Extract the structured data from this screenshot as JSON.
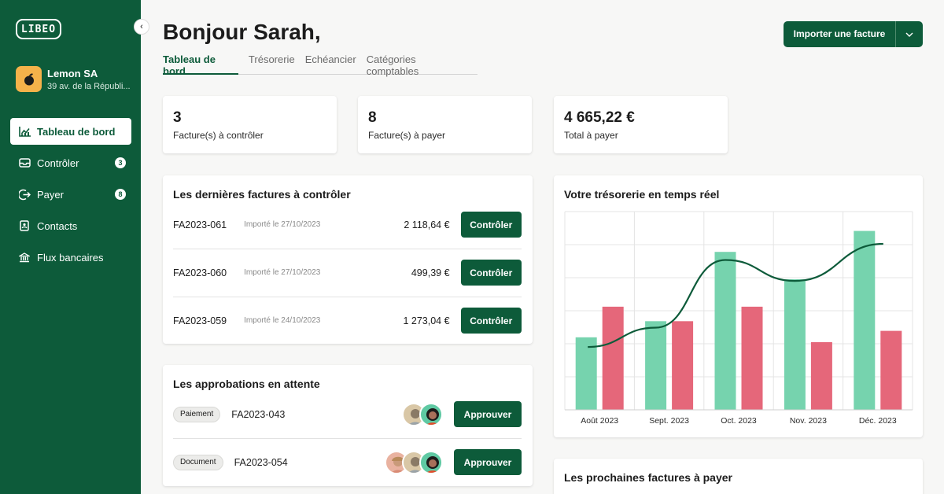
{
  "app": {
    "logo_text": "LIBEO"
  },
  "sidebar": {
    "company": {
      "name": "Lemon SA",
      "address": "39 av. de la Républi..."
    },
    "items": [
      {
        "label": "Tableau de bord",
        "icon": "chart-icon",
        "active": true
      },
      {
        "label": "Contrôler",
        "icon": "inbox-icon",
        "badge": "3"
      },
      {
        "label": "Payer",
        "icon": "exit-arrow-icon",
        "badge": "8"
      },
      {
        "label": "Contacts",
        "icon": "contact-book-icon"
      },
      {
        "label": "Flux bancaires",
        "icon": "bank-icon"
      }
    ]
  },
  "header": {
    "title": "Bonjour Sarah,",
    "tabs": [
      "Tableau de bord",
      "Trésorerie",
      "Echéancier",
      "Catégories comptables"
    ],
    "import_label": "Importer une facture"
  },
  "stats": [
    {
      "value": "3",
      "label": "Facture(s) à contrôler"
    },
    {
      "value": "8",
      "label": "Facture(s) à payer"
    },
    {
      "value": "4 665,22 €",
      "label": "Total à payer"
    }
  ],
  "invoices_to_check": {
    "title": "Les dernières factures à contrôler",
    "button_label": "Contrôler",
    "rows": [
      {
        "number": "FA2023-061",
        "date": "Importé le 27/10/2023",
        "amount": "2 118,64 €"
      },
      {
        "number": "FA2023-060",
        "date": "Importé le 27/10/2023",
        "amount": "499,39 €"
      },
      {
        "number": "FA2023-059",
        "date": "Importé le 24/10/2023",
        "amount": "1 273,04 €"
      }
    ]
  },
  "approvals": {
    "title": "Les approbations en attente",
    "button_label": "Approuver",
    "rows": [
      {
        "tag": "Paiement",
        "number": "FA2023-043"
      },
      {
        "tag": "Document",
        "number": "FA2023-054"
      }
    ]
  },
  "treasury": {
    "title": "Votre trésorerie en temps réel"
  },
  "upcoming": {
    "title": "Les prochaines factures à payer"
  },
  "colors": {
    "brand": "#0d5b3a",
    "income": "#76d3ae",
    "expense": "#e5677a"
  },
  "chart_data": {
    "type": "bar",
    "categories": [
      "Août 2023",
      "Sept. 2023",
      "Oct. 2023",
      "Nov. 2023",
      "Déc. 2023"
    ],
    "series": [
      {
        "values": [
          45,
          55,
          98,
          81,
          111
        ],
        "color": "#76d3ae"
      },
      {
        "values": [
          64,
          55,
          64,
          42,
          49
        ],
        "color": "#e5677a"
      }
    ],
    "line": {
      "values": [
        39,
        51,
        93,
        80,
        103
      ],
      "color": "#0d5b3a"
    },
    "ylim": [
      0,
      123
    ],
    "grid": true
  }
}
